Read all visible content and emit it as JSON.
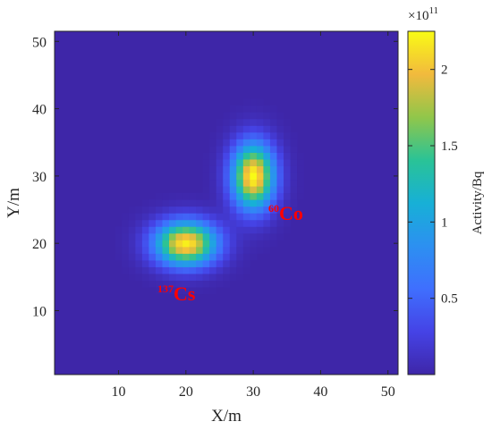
{
  "chart_data": {
    "type": "heatmap",
    "xlabel": "X/m",
    "ylabel": "Y/m",
    "xlim": [
      0.5,
      51.5
    ],
    "ylim": [
      0.5,
      51.5
    ],
    "x_ticks": [
      10,
      20,
      30,
      40,
      50
    ],
    "y_ticks": [
      10,
      20,
      30,
      40,
      50
    ],
    "grid": false,
    "grid_size": [
      51,
      51
    ],
    "colormap": "parula",
    "sources": [
      {
        "isotope_mass": "60",
        "isotope_symbol": "Co",
        "center": [
          30,
          30
        ],
        "sigma_x": 2.2,
        "sigma_y": 3.4,
        "peak_activity_bq": 225000000000.0
      },
      {
        "isotope_mass": "137",
        "isotope_symbol": "Cs",
        "center": [
          20,
          20
        ],
        "sigma_x": 3.2,
        "sigma_y": 2.3,
        "peak_activity_bq": 220000000000.0
      }
    ],
    "colorbar": {
      "label": "Activity/Bq",
      "exponent_label": "×10",
      "exponent": "11",
      "limits": [
        0.0,
        2.25
      ],
      "ticks": [
        0.5,
        1,
        1.5,
        2
      ],
      "tick_labels": [
        "0.5",
        "1",
        "1.5",
        "2"
      ]
    }
  }
}
